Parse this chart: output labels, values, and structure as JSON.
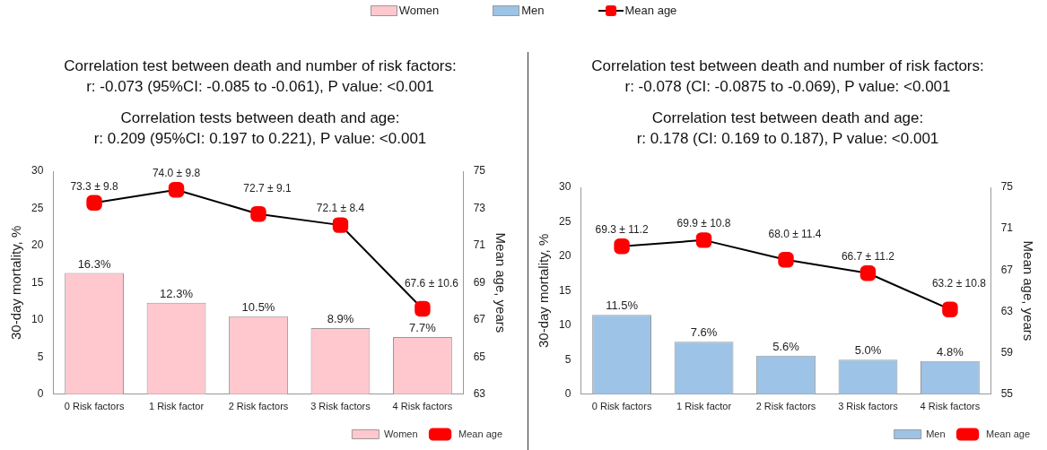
{
  "chart_data": [
    {
      "type": "bar",
      "title": "Correlation test between death and number of risk factors:",
      "subtitle": "r: -0.073 (95%CI: -0.085 to -0.061), P value: <0.001",
      "annotations": [
        "Correlation tests between death and age:",
        "r: 0.209 (95%CI: 0.197 to 0.221), P value: <0.001"
      ],
      "ylabel": "30-day mortality, %",
      "y2label": "Mean age, years",
      "categories": [
        "0 Risk factors",
        "1 Risk factor",
        "2 Risk factors",
        "3 Risk factors",
        "4 Risk factors"
      ],
      "ylim": [
        0,
        30
      ],
      "yticks": [
        0,
        5,
        10,
        15,
        20,
        25,
        30
      ],
      "y2lim": [
        63,
        75
      ],
      "y2ticks": [
        63,
        65,
        67,
        69,
        71,
        73,
        75
      ],
      "grid": false,
      "legend": "bottom right",
      "series": [
        {
          "name": "Women",
          "color": "#ffc7ce",
          "values": [
            16.3,
            12.3,
            10.5,
            8.9,
            7.7
          ],
          "value_labels": [
            "16.3%",
            "12.3%",
            "10.5%",
            "8.9%",
            "7.7%"
          ]
        },
        {
          "name": "Mean age",
          "type": "line",
          "axis": "y2",
          "color": "#ff0000",
          "marker": "square",
          "values": [
            73.3,
            74.0,
            72.7,
            72.1,
            67.6
          ],
          "value_labels": [
            "73.3 ± 9.8",
            "74.0 ± 9.8",
            "72.7 ± 9.1",
            "72.1 ± 8.4",
            "67.6 ± 10.6"
          ]
        }
      ]
    },
    {
      "type": "bar",
      "title": "Correlation test between death and number of risk factors:",
      "subtitle": "r: -0.078 (CI: -0.0875 to -0.069), P value: <0.001",
      "annotations": [
        "Correlation test between death and age:",
        "r: 0.178 (CI: 0.169 to 0.187), P value: <0.001"
      ],
      "ylabel": "30-day mortality, %",
      "y2label": "Mean age, years",
      "categories": [
        "0 Risk factors",
        "1 Risk factor",
        "2 Risk factors",
        "3 Risk factors",
        "4 Risk factors"
      ],
      "ylim": [
        0,
        30
      ],
      "yticks": [
        0,
        5,
        10,
        15,
        20,
        25,
        30
      ],
      "y2lim": [
        55,
        75
      ],
      "y2ticks": [
        55,
        59,
        63,
        67,
        71,
        75
      ],
      "grid": false,
      "legend": "bottom right",
      "series": [
        {
          "name": "Men",
          "color": "#9dc3e6",
          "values": [
            11.5,
            7.6,
            5.6,
            5.0,
            4.8
          ],
          "value_labels": [
            "11.5%",
            "7.6%",
            "5.6%",
            "5.0%",
            "4.8%"
          ]
        },
        {
          "name": "Mean age",
          "type": "line",
          "axis": "y2",
          "color": "#ff0000",
          "marker": "square",
          "values": [
            69.3,
            69.9,
            68.0,
            66.7,
            63.2
          ],
          "value_labels": [
            "69.3 ± 11.2",
            "69.9 ± 10.8",
            "68.0 ± 11.4",
            "66.7 ± 11.2",
            "63.2 ± 10.8"
          ]
        }
      ]
    }
  ]
}
